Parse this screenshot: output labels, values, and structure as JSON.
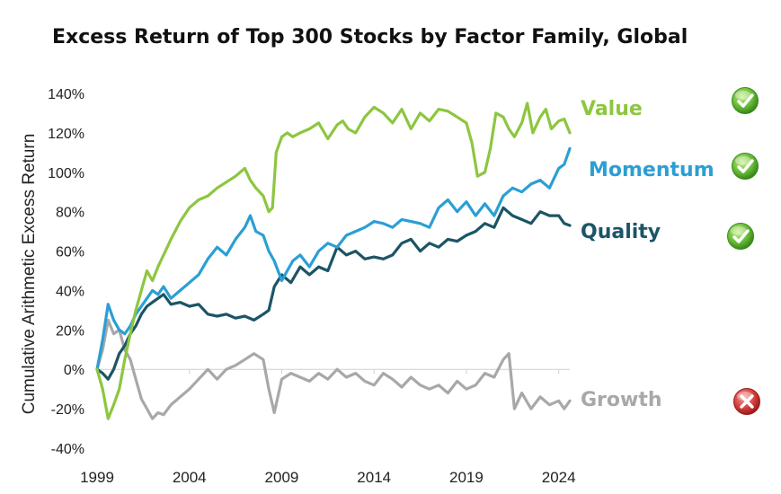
{
  "chart_data": {
    "type": "line",
    "title": "Excess Return of Top 300 Stocks by Factor Family, Global",
    "xlabel": "",
    "ylabel": "Cumulative Arithmetic Excess Return",
    "xlim": [
      1999,
      2024.6
    ],
    "ylim": [
      -40,
      140
    ],
    "x_ticks": [
      "1999",
      "2004",
      "2009",
      "2014",
      "2019",
      "2024"
    ],
    "y_ticks": [
      "140%",
      "120%",
      "100%",
      "80%",
      "60%",
      "40%",
      "20%",
      "0%",
      "-20%",
      "-40%"
    ],
    "series": [
      {
        "name": "Value",
        "color": "#8dc63f",
        "status": "check",
        "x": [
          1999.0,
          1999.3,
          1999.6,
          1999.9,
          2000.2,
          2000.5,
          2000.8,
          2001.1,
          2001.4,
          2001.7,
          2002.0,
          2002.3,
          2002.6,
          2003.0,
          2003.5,
          2004.0,
          2004.5,
          2005.0,
          2005.5,
          2006.0,
          2006.5,
          2007.0,
          2007.3,
          2007.6,
          2008.0,
          2008.3,
          2008.5,
          2008.7,
          2009.0,
          2009.3,
          2009.6,
          2010.0,
          2010.5,
          2011.0,
          2011.5,
          2012.0,
          2012.3,
          2012.6,
          2013.0,
          2013.5,
          2014.0,
          2014.5,
          2015.0,
          2015.5,
          2016.0,
          2016.5,
          2017.0,
          2017.5,
          2018.0,
          2018.5,
          2019.0,
          2019.3,
          2019.6,
          2020.0,
          2020.3,
          2020.6,
          2021.0,
          2021.3,
          2021.6,
          2022.0,
          2022.3,
          2022.6,
          2023.0,
          2023.3,
          2023.6,
          2024.0,
          2024.3,
          2024.6
        ],
        "values": [
          0,
          -10,
          -25,
          -18,
          -10,
          5,
          18,
          30,
          40,
          50,
          45,
          52,
          58,
          66,
          75,
          82,
          86,
          88,
          92,
          95,
          98,
          102,
          96,
          92,
          88,
          80,
          82,
          110,
          118,
          120,
          118,
          120,
          122,
          125,
          117,
          124,
          126,
          122,
          120,
          128,
          133,
          130,
          125,
          132,
          122,
          130,
          126,
          132,
          131,
          128,
          125,
          115,
          98,
          100,
          112,
          130,
          128,
          122,
          118,
          125,
          135,
          120,
          128,
          132,
          122,
          126,
          127,
          120
        ]
      },
      {
        "name": "Momentum",
        "color": "#2b9fd4",
        "status": "check",
        "x": [
          1999.0,
          1999.3,
          1999.6,
          1999.9,
          2000.2,
          2000.5,
          2000.8,
          2001.1,
          2001.4,
          2001.7,
          2002.0,
          2002.3,
          2002.6,
          2003.0,
          2003.5,
          2004.0,
          2004.5,
          2005.0,
          2005.5,
          2006.0,
          2006.5,
          2007.0,
          2007.3,
          2007.6,
          2008.0,
          2008.3,
          2008.6,
          2009.0,
          2009.3,
          2009.6,
          2010.0,
          2010.5,
          2011.0,
          2011.5,
          2012.0,
          2012.5,
          2013.0,
          2013.5,
          2014.0,
          2014.5,
          2015.0,
          2015.5,
          2016.0,
          2016.5,
          2017.0,
          2017.5,
          2018.0,
          2018.5,
          2019.0,
          2019.5,
          2020.0,
          2020.5,
          2021.0,
          2021.5,
          2022.0,
          2022.5,
          2023.0,
          2023.5,
          2024.0,
          2024.3,
          2024.6
        ],
        "values": [
          0,
          15,
          33,
          25,
          20,
          18,
          22,
          28,
          32,
          36,
          40,
          38,
          42,
          36,
          40,
          44,
          48,
          56,
          62,
          58,
          66,
          72,
          78,
          70,
          68,
          60,
          55,
          45,
          50,
          55,
          58,
          52,
          60,
          64,
          62,
          68,
          70,
          72,
          75,
          74,
          72,
          76,
          75,
          74,
          72,
          82,
          86,
          80,
          85,
          78,
          84,
          78,
          88,
          92,
          90,
          94,
          96,
          92,
          102,
          104,
          112
        ]
      },
      {
        "name": "Quality",
        "color": "#1b5566",
        "status": "check",
        "x": [
          1999.0,
          1999.3,
          1999.6,
          1999.9,
          2000.2,
          2000.5,
          2000.8,
          2001.1,
          2001.4,
          2001.7,
          2002.0,
          2002.3,
          2002.6,
          2003.0,
          2003.5,
          2004.0,
          2004.5,
          2005.0,
          2005.5,
          2006.0,
          2006.5,
          2007.0,
          2007.5,
          2008.0,
          2008.3,
          2008.6,
          2009.0,
          2009.5,
          2010.0,
          2010.5,
          2011.0,
          2011.5,
          2012.0,
          2012.5,
          2013.0,
          2013.5,
          2014.0,
          2014.5,
          2015.0,
          2015.5,
          2016.0,
          2016.5,
          2017.0,
          2017.5,
          2018.0,
          2018.5,
          2019.0,
          2019.5,
          2020.0,
          2020.5,
          2021.0,
          2021.5,
          2022.0,
          2022.5,
          2023.0,
          2023.5,
          2024.0,
          2024.3,
          2024.6
        ],
        "values": [
          0,
          -2,
          -5,
          0,
          8,
          12,
          18,
          22,
          28,
          32,
          34,
          36,
          38,
          33,
          34,
          32,
          33,
          28,
          27,
          28,
          26,
          27,
          25,
          28,
          30,
          42,
          48,
          44,
          52,
          48,
          52,
          50,
          62,
          58,
          60,
          56,
          57,
          56,
          58,
          64,
          66,
          60,
          64,
          62,
          66,
          65,
          68,
          70,
          74,
          72,
          82,
          78,
          76,
          74,
          80,
          78,
          78,
          74,
          73
        ]
      },
      {
        "name": "Growth",
        "color": "#a8a8a8",
        "status": "cross",
        "x": [
          1999.0,
          1999.3,
          1999.6,
          1999.9,
          2000.2,
          2000.5,
          2000.8,
          2001.1,
          2001.4,
          2001.7,
          2002.0,
          2002.3,
          2002.6,
          2003.0,
          2003.5,
          2004.0,
          2004.5,
          2005.0,
          2005.5,
          2006.0,
          2006.5,
          2007.0,
          2007.5,
          2008.0,
          2008.3,
          2008.6,
          2009.0,
          2009.5,
          2010.0,
          2010.5,
          2011.0,
          2011.5,
          2012.0,
          2012.5,
          2013.0,
          2013.5,
          2014.0,
          2014.5,
          2015.0,
          2015.5,
          2016.0,
          2016.5,
          2017.0,
          2017.5,
          2018.0,
          2018.5,
          2019.0,
          2019.5,
          2020.0,
          2020.5,
          2021.0,
          2021.3,
          2021.6,
          2022.0,
          2022.5,
          2023.0,
          2023.5,
          2024.0,
          2024.3,
          2024.6
        ],
        "values": [
          0,
          10,
          25,
          18,
          20,
          10,
          5,
          -5,
          -15,
          -20,
          -25,
          -22,
          -23,
          -18,
          -14,
          -10,
          -5,
          0,
          -5,
          0,
          2,
          5,
          8,
          5,
          -10,
          -22,
          -5,
          -2,
          -4,
          -6,
          -2,
          -5,
          0,
          -4,
          -2,
          -6,
          -8,
          -2,
          -5,
          -9,
          -4,
          -8,
          -10,
          -8,
          -12,
          -6,
          -10,
          -8,
          -2,
          -4,
          5,
          8,
          -20,
          -12,
          -20,
          -14,
          -18,
          -16,
          -20,
          -16
        ]
      }
    ]
  }
}
